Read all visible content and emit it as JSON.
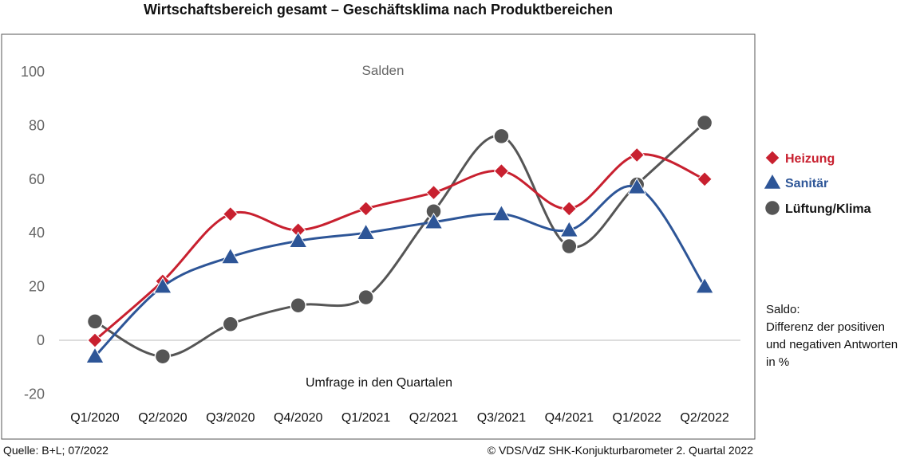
{
  "chart_data": {
    "type": "line",
    "title": "Wirtschaftsbereich gesamt – Geschäftsklima nach Produktbereichen",
    "annotation": "Salden",
    "xlabel": "Umfrage in den Quartalen",
    "ylabel": "",
    "ylim": [
      -20,
      100
    ],
    "yticks": [
      "100",
      "80",
      "60",
      "40",
      "20",
      "0",
      "-20"
    ],
    "categories": [
      "Q1/2020",
      "Q2/2020",
      "Q3/2020",
      "Q4/2020",
      "Q1/2021",
      "Q2/2021",
      "Q3/2021",
      "Q4/2021",
      "Q1/2022",
      "Q2/2022"
    ],
    "grid": false,
    "legend_position": "right",
    "series": [
      {
        "name": "Heizung",
        "color": "#c8202f",
        "marker": "diamond",
        "values": [
          0,
          22,
          47,
          41,
          49,
          55,
          63,
          49,
          69,
          60
        ]
      },
      {
        "name": "Sanitär",
        "color": "#2d5597",
        "marker": "triangle",
        "values": [
          -6,
          20,
          31,
          37,
          40,
          44,
          47,
          41,
          57,
          20
        ]
      },
      {
        "name": "Lüftung/Klima",
        "color": "#555555",
        "marker": "circle",
        "values": [
          7,
          -6,
          6,
          13,
          16,
          48,
          76,
          35,
          58,
          81
        ]
      }
    ],
    "note": [
      "Saldo:",
      "Differenz der positiven",
      "und negativen Antworten",
      "in %"
    ],
    "source": "Quelle: B+L; 07/2022",
    "copyright": "© VDS/VdZ SHK-Konjukturbarometer 2. Quartal 2022"
  }
}
